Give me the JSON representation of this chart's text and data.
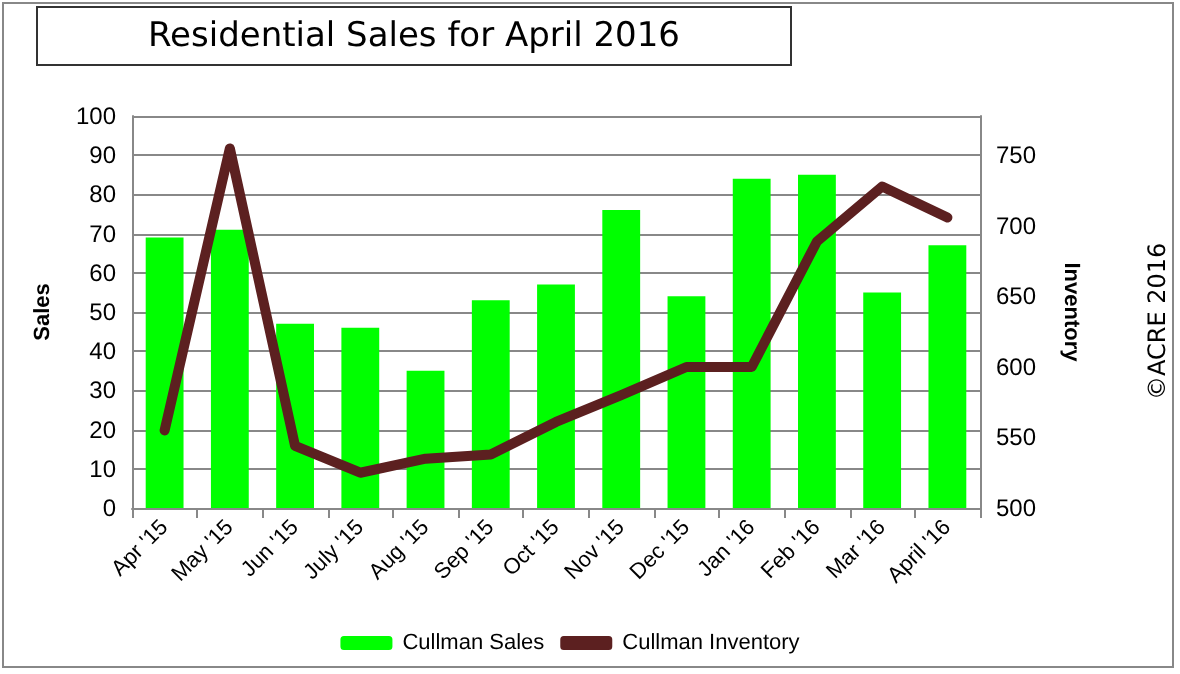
{
  "chart_data": {
    "type": "bar",
    "title": "Residential Sales for April 2016",
    "ylabel": "Sales",
    "y2label": "Inventory",
    "categories": [
      "Apr '15",
      "May '15",
      "Jun '15",
      "July '15",
      "Aug '15",
      "Sep '15",
      "Oct '15",
      "Nov '15",
      "Dec '15",
      "Jan '16",
      "Feb '16",
      "Mar '16",
      "April '16"
    ],
    "series": [
      {
        "name": "Cullman Sales",
        "color": "#00ff00",
        "values": [
          69,
          71,
          47,
          46,
          35,
          53,
          57,
          76,
          54,
          84,
          85,
          55,
          67
        ]
      },
      {
        "name": "Cullman Inventory",
        "type": "line",
        "axis": "y2",
        "color": "#5c2020",
        "values": [
          555,
          755,
          544,
          525,
          535,
          538,
          561,
          580,
          600,
          600,
          689,
          728,
          706
        ]
      }
    ],
    "ylim": [
      0,
      100
    ],
    "yticks": [
      0,
      10,
      20,
      30,
      40,
      50,
      60,
      70,
      80,
      90,
      100
    ],
    "y2lim": [
      500,
      778
    ],
    "y2ticks": [
      500,
      550,
      600,
      650,
      700,
      750
    ],
    "grid": "y",
    "legend": "bottom",
    "marker": "none",
    "line_style": "solid",
    "annotations": [
      "©ACRE 2016"
    ]
  }
}
